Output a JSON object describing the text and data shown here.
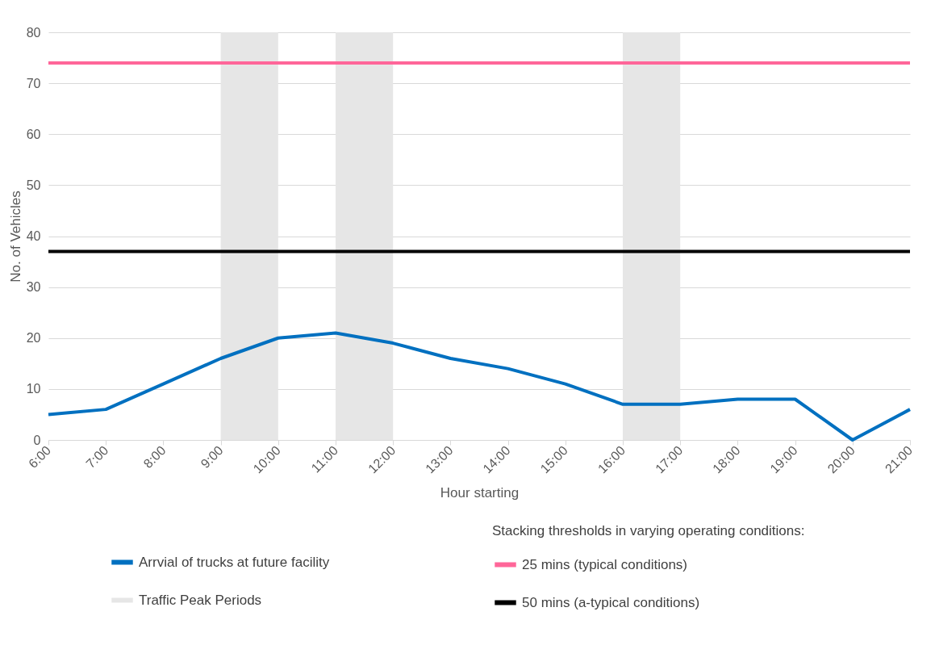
{
  "chart_data": {
    "type": "line",
    "categories": [
      "6:00",
      "7:00",
      "8:00",
      "9:00",
      "10:00",
      "11:00",
      "12:00",
      "13:00",
      "14:00",
      "15:00",
      "16:00",
      "17:00",
      "18:00",
      "19:00",
      "20:00",
      "21:00"
    ],
    "series": [
      {
        "name": "Arrvial of trucks at future facility",
        "color": "#0070c0",
        "values": [
          5,
          6,
          11,
          16,
          20,
          21,
          19,
          16,
          14,
          11,
          7,
          7,
          8,
          8,
          0,
          6
        ]
      }
    ],
    "xlabel": "Hour starting",
    "ylabel": "No. of Vehicles",
    "ylim": [
      0,
      80
    ],
    "yticks": [
      0,
      10,
      20,
      30,
      40,
      50,
      60,
      70,
      80
    ],
    "grid": "y",
    "legend": "bottom",
    "legend_title": "Stacking thresholds in varying operating conditions:",
    "ref_lines": [
      {
        "axis": "y",
        "value": 74,
        "label": "25 mins (typical conditions)",
        "color": "#ff6699"
      },
      {
        "axis": "y",
        "value": 37,
        "label": "50 mins (a-typical conditions)",
        "color": "#000000"
      }
    ],
    "bands": [
      {
        "axis": "x",
        "from": "9:00",
        "to": "10:00",
        "label": "Traffic Peak Periods",
        "color": "#e6e6e6"
      },
      {
        "axis": "x",
        "from": "11:00",
        "to": "12:00",
        "color": "#e6e6e6"
      },
      {
        "axis": "x",
        "from": "16:00",
        "to": "17:00",
        "color": "#e6e6e6"
      }
    ]
  }
}
